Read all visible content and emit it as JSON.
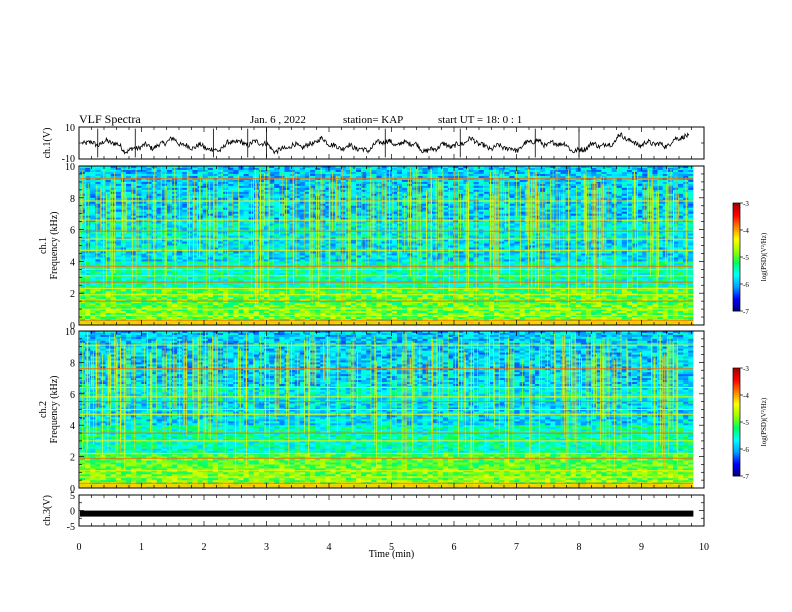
{
  "header": {
    "title": "VLF Spectra",
    "date": "Jan. 6 , 2022",
    "station": "station= KAP",
    "start": "start UT = 18: 0 : 1"
  },
  "chart_data": [
    {
      "type": "line",
      "name": "ch1-waveform",
      "ylabel": "ch.1(V)",
      "ylim": [
        -10,
        10
      ],
      "yticks": [
        "10",
        "-10"
      ],
      "xlim": [
        0,
        10
      ]
    },
    {
      "type": "heatmap",
      "name": "ch1-spectrogram",
      "ylabel_line1": "ch.1",
      "ylabel_line2": "Frequency (kHz)",
      "ylim": [
        0,
        10
      ],
      "yticks": [
        "0",
        "2",
        "4",
        "6",
        "8",
        "10"
      ],
      "xlim": [
        0,
        10
      ],
      "data_end_min": 9.83,
      "colorbar": {
        "label": "log(PSD)(V²/Hz)",
        "range": [
          -7,
          -3
        ],
        "ticks": [
          "-3",
          "-4",
          "-5",
          "-6",
          "-7"
        ]
      },
      "bright_bands_khz": [
        0.3,
        0.6,
        1.0,
        1.5,
        1.9,
        2.3,
        2.7,
        3.1,
        3.5,
        3.7,
        4.7,
        5.4,
        5.9,
        6.6,
        7.8,
        9.2
      ]
    },
    {
      "type": "heatmap",
      "name": "ch2-spectrogram",
      "ylabel_line1": "ch.2",
      "ylabel_line2": "Frequency (kHz)",
      "ylim": [
        0,
        10
      ],
      "yticks": [
        "0",
        "2",
        "4",
        "6",
        "8",
        "10"
      ],
      "xlim": [
        0,
        10
      ],
      "data_end_min": 9.83,
      "colorbar": {
        "label": "log(PSD)(V²/Hz)",
        "range": [
          -7,
          -3
        ],
        "ticks": [
          "-3",
          "-4",
          "-5",
          "-6",
          "-7"
        ]
      },
      "bright_bands_khz": [
        0.3,
        0.7,
        1.1,
        1.9,
        2.2,
        3.0,
        3.5,
        4.7,
        5.0,
        5.5,
        5.8,
        6.4,
        7.6,
        9.1
      ]
    },
    {
      "type": "line",
      "name": "ch3-waveform",
      "ylabel": "ch.3(V)",
      "ylim": [
        -5,
        5
      ],
      "yticks": [
        "5",
        "0",
        "-5"
      ],
      "xlim": [
        0,
        10
      ],
      "constant_value": -1
    }
  ],
  "xaxis": {
    "label": "Time (min)",
    "ticks": [
      "0",
      "1",
      "2",
      "3",
      "4",
      "5",
      "6",
      "7",
      "8",
      "9",
      "10"
    ]
  },
  "colors": {
    "axis": "#000000",
    "colormap": [
      "#00007a",
      "#0000ff",
      "#00a0ff",
      "#00ffff",
      "#00ff60",
      "#a0ff00",
      "#ffff00",
      "#ff8000",
      "#ff0000",
      "#a00000"
    ]
  }
}
